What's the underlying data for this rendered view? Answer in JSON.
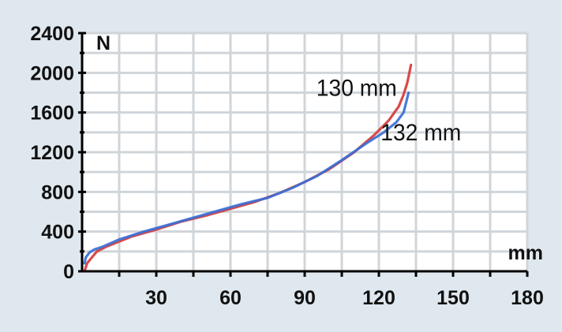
{
  "chart_data": {
    "type": "line",
    "title": "",
    "xlabel": "mm",
    "ylabel": "N",
    "xlim": [
      0,
      180
    ],
    "ylim": [
      0,
      2400
    ],
    "x_ticks": [
      30,
      60,
      90,
      120,
      150,
      180
    ],
    "y_ticks": [
      0,
      400,
      800,
      1200,
      1600,
      2000,
      2400
    ],
    "grid": true,
    "background": "#dfe8ee",
    "plot_background": "#ffffff",
    "grid_color": "#d0d5da",
    "series": [
      {
        "name": "130 mm",
        "color": "#d63a3a",
        "x": [
          1,
          2,
          4,
          6,
          10,
          20,
          30,
          40,
          50,
          60,
          70,
          80,
          90,
          100,
          110,
          118,
          124,
          128,
          130,
          131.5,
          133
        ],
        "y": [
          0,
          80,
          140,
          200,
          250,
          350,
          420,
          500,
          560,
          630,
          700,
          790,
          900,
          1030,
          1200,
          1370,
          1520,
          1660,
          1780,
          1900,
          2080
        ]
      },
      {
        "name": "132 mm",
        "color": "#3a6fd6",
        "x": [
          1,
          1.5,
          3,
          5,
          8,
          15,
          25,
          35,
          45,
          55,
          65,
          75,
          85,
          95,
          105,
          115,
          122,
          127,
          130,
          131,
          132
        ],
        "y": [
          80,
          140,
          190,
          220,
          245,
          320,
          400,
          470,
          540,
          610,
          680,
          740,
          840,
          960,
          1120,
          1290,
          1400,
          1500,
          1600,
          1700,
          1800
        ]
      }
    ],
    "annotations": [
      {
        "text": "130 mm",
        "x": 111,
        "y": 1770
      },
      {
        "text": "132 mm",
        "x": 137,
        "y": 1320
      }
    ]
  }
}
